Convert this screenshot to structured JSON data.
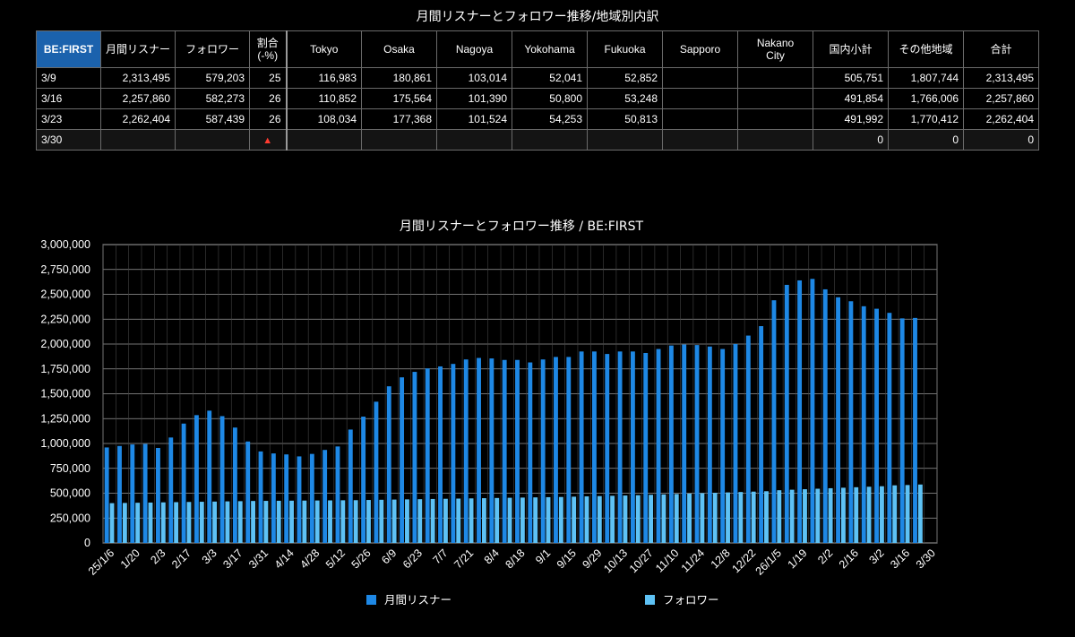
{
  "table_title": "月間リスナーとフォロワー推移/地域別内訳",
  "table": {
    "headers": [
      "BE:FIRST",
      "月間リスナー",
      "フォロワー",
      "割合\n(-%)",
      "Tokyo",
      "Osaka",
      "Nagoya",
      "Yokohama",
      "Fukuoka",
      "Sapporo",
      "Nakano\nCity",
      "国内小計",
      "その他地域",
      "合計"
    ],
    "rows": [
      [
        "3/9",
        "2,313,495",
        "579,203",
        "25",
        "116,983",
        "180,861",
        "103,014",
        "52,041",
        "52,852",
        "",
        "",
        "505,751",
        "1,807,744",
        "2,313,495"
      ],
      [
        "3/16",
        "2,257,860",
        "582,273",
        "26",
        "110,852",
        "175,564",
        "101,390",
        "50,800",
        "53,248",
        "",
        "",
        "491,854",
        "1,766,006",
        "2,257,860"
      ],
      [
        "3/23",
        "2,262,404",
        "587,439",
        "26",
        "108,034",
        "177,368",
        "101,524",
        "54,253",
        "50,813",
        "",
        "",
        "491,992",
        "1,770,412",
        "2,262,404"
      ],
      [
        "3/30",
        "",
        "",
        "",
        "",
        "",
        "",
        "",
        "",
        "",
        "",
        "0",
        "0",
        "0"
      ]
    ],
    "warning_icon": "warning-triangle-icon"
  },
  "colors": {
    "listeners": "#1e88e5",
    "followers": "#5ec2f5",
    "header_accent": "#1b62ad",
    "warning": "#ff3b30"
  },
  "chart_data": {
    "type": "bar",
    "title": "月間リスナーとフォロワー推移 / BE:FIRST",
    "xlabel": "",
    "ylabel": "",
    "ylim": [
      0,
      3000000
    ],
    "ytick_labels": [
      "0",
      "250,000",
      "500,000",
      "750,000",
      "1,000,000",
      "1,250,000",
      "1,500,000",
      "1,750,000",
      "2,000,000",
      "2,250,000",
      "2,500,000",
      "2,750,000",
      "3,000,000"
    ],
    "ytick_values": [
      0,
      250000,
      500000,
      750000,
      1000000,
      1250000,
      1500000,
      1750000,
      2000000,
      2250000,
      2500000,
      2750000,
      3000000
    ],
    "grid": true,
    "legend_position": "bottom",
    "categories": [
      "25/1/6",
      "1/13",
      "1/20",
      "1/27",
      "2/3",
      "2/10",
      "2/17",
      "2/24",
      "3/3",
      "3/10",
      "3/17",
      "3/24",
      "3/31",
      "4/7",
      "4/14",
      "4/21",
      "4/28",
      "5/5",
      "5/12",
      "5/19",
      "5/26",
      "6/2",
      "6/9",
      "6/16",
      "6/23",
      "6/30",
      "7/7",
      "7/14",
      "7/21",
      "7/28",
      "8/4",
      "8/11",
      "8/18",
      "8/25",
      "9/1",
      "9/8",
      "9/15",
      "9/22",
      "9/29",
      "10/6",
      "10/13",
      "10/20",
      "10/27",
      "11/3",
      "11/10",
      "11/17",
      "11/24",
      "12/1",
      "12/8",
      "12/15",
      "12/22",
      "12/29",
      "26/1/5",
      "1/12",
      "1/19",
      "1/26",
      "2/2",
      "2/9",
      "2/16",
      "2/23",
      "3/2",
      "3/9",
      "3/16",
      "3/23",
      "3/30"
    ],
    "shown_tick_labels": [
      "25/1/6",
      "1/20",
      "2/3",
      "2/17",
      "3/3",
      "3/17",
      "3/31",
      "4/14",
      "4/28",
      "5/12",
      "5/26",
      "6/9",
      "6/23",
      "7/7",
      "7/21",
      "8/4",
      "8/18",
      "9/1",
      "9/15",
      "9/29",
      "10/13",
      "10/27",
      "11/10",
      "11/24",
      "12/8",
      "12/22",
      "26/1/5",
      "1/19",
      "2/2",
      "2/16",
      "3/2",
      "3/16",
      "3/30"
    ],
    "series": [
      {
        "name": "月間リスナー",
        "values": [
          960000,
          975000,
          990000,
          995000,
          955000,
          1060000,
          1200000,
          1285000,
          1330000,
          1275000,
          1160000,
          1020000,
          920000,
          900000,
          890000,
          870000,
          895000,
          935000,
          970000,
          1140000,
          1270000,
          1420000,
          1575000,
          1665000,
          1720000,
          1755000,
          1775000,
          1800000,
          1845000,
          1860000,
          1855000,
          1840000,
          1840000,
          1815000,
          1845000,
          1870000,
          1870000,
          1925000,
          1925000,
          1900000,
          1925000,
          1925000,
          1910000,
          1950000,
          1985000,
          1995000,
          1990000,
          1975000,
          1950000,
          2000000,
          2085000,
          2180000,
          2440000,
          2595000,
          2640000,
          2655000,
          2550000,
          2470000,
          2430000,
          2380000,
          2355000,
          2313495,
          2257860,
          2262404,
          0
        ]
      },
      {
        "name": "フォロワー",
        "values": [
          400000,
          402000,
          404000,
          406000,
          408000,
          410000,
          412000,
          414000,
          416000,
          418000,
          420000,
          422000,
          423000,
          424000,
          425000,
          426000,
          427000,
          428000,
          429000,
          430000,
          432000,
          434000,
          436000,
          438000,
          440000,
          442000,
          444000,
          446000,
          448000,
          450000,
          452000,
          454000,
          456000,
          458000,
          460000,
          462000,
          465000,
          468000,
          471000,
          474000,
          477000,
          480000,
          484000,
          488000,
          492000,
          496000,
          500000,
          504000,
          508000,
          512000,
          516000,
          520000,
          530000,
          535000,
          540000,
          545000,
          550000,
          555000,
          560000,
          565000,
          570000,
          579203,
          582273,
          587439,
          0
        ]
      }
    ]
  }
}
